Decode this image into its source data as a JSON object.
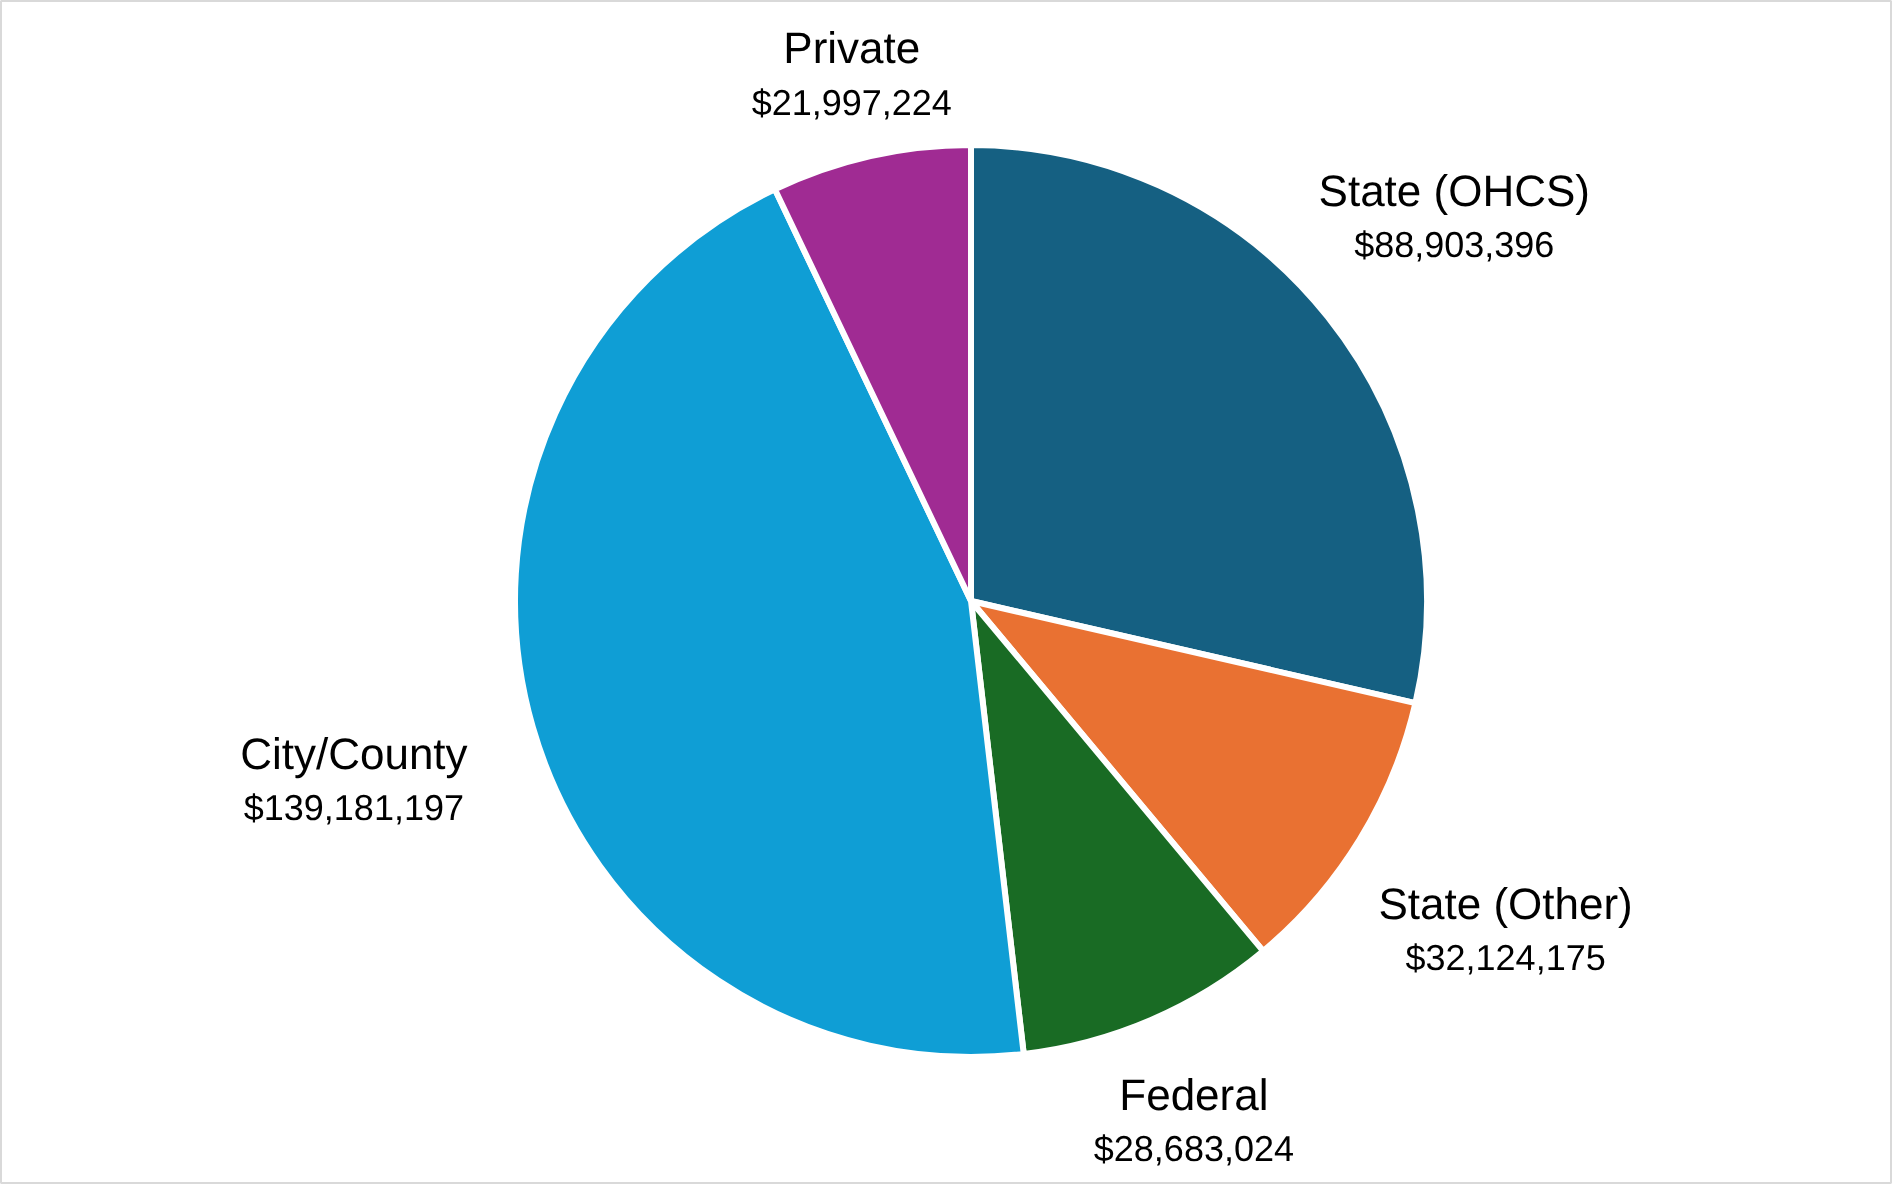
{
  "chart_data": {
    "type": "pie",
    "categories": [
      "State (OHCS)",
      "State (Other)",
      "Federal",
      "City/County",
      "Private"
    ],
    "values": [
      88903396,
      32124175,
      28683024,
      139181197,
      21997224
    ],
    "colors": [
      "#156082",
      "#e97132",
      "#196b24",
      "#0f9ed5",
      "#a02b93"
    ],
    "value_labels": [
      "$88,903,396",
      "$32,124,175",
      "$28,683,024",
      "$139,181,197",
      "$21,997,224"
    ]
  }
}
